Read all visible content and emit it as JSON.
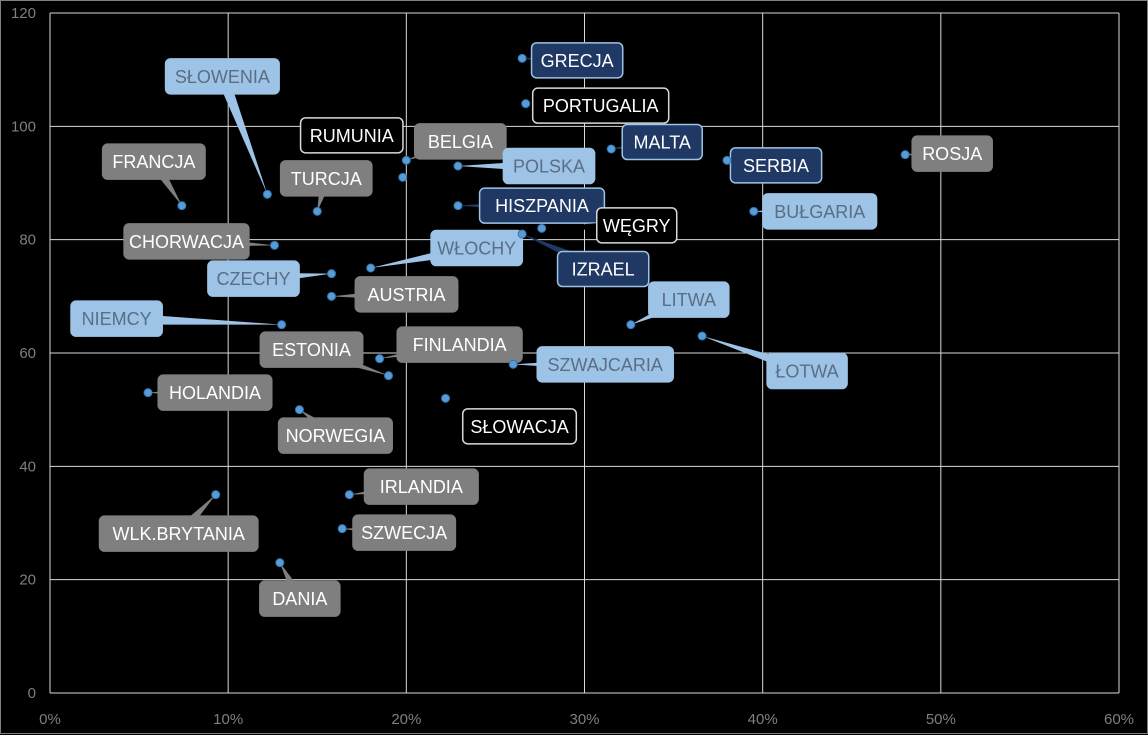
{
  "chart_data": {
    "type": "scatter",
    "title": "",
    "xlabel": "",
    "ylabel": "",
    "xlim": [
      0,
      0.6
    ],
    "ylim": [
      0,
      120
    ],
    "x_ticks": [
      "0%",
      "10%",
      "20%",
      "30%",
      "40%",
      "50%",
      "60%"
    ],
    "y_ticks": [
      "0",
      "20",
      "40",
      "60",
      "80",
      "100",
      "120"
    ],
    "grid": true,
    "legend": "none",
    "label_styles": {
      "gray": {
        "fill": "#7f7f7f",
        "stroke": "#7f7f7f",
        "text": "#ffffff"
      },
      "lightblue": {
        "fill": "#9dc3e6",
        "stroke": "#9dc3e6",
        "text": "#5a6e85"
      },
      "navy": {
        "fill": "#1f3864",
        "stroke": "#9dc3e6",
        "text": "#ffffff"
      },
      "black": {
        "fill": "#000000",
        "stroke": "#d9d9d9",
        "text": "#ffffff"
      }
    },
    "point_color": "#5b9bd5",
    "points": [
      {
        "name": "GRECJA",
        "x": 0.265,
        "y": 112,
        "style": "navy"
      },
      {
        "name": "PORTUGALIA",
        "x": 0.267,
        "y": 104,
        "style": "black"
      },
      {
        "name": "MALTA",
        "x": 0.315,
        "y": 96,
        "style": "navy"
      },
      {
        "name": "SERBIA",
        "x": 0.38,
        "y": 94,
        "style": "navy"
      },
      {
        "name": "ROSJA",
        "x": 0.48,
        "y": 95,
        "style": "gray"
      },
      {
        "name": "SŁOWENIA",
        "x": 0.122,
        "y": 88,
        "style": "lightblue"
      },
      {
        "name": "FRANCJA",
        "x": 0.074,
        "y": 86,
        "style": "gray"
      },
      {
        "name": "TURCJA",
        "x": 0.15,
        "y": 85,
        "style": "gray"
      },
      {
        "name": "RUMUNIA",
        "x": 0.198,
        "y": 91,
        "style": "black"
      },
      {
        "name": "BELGIA",
        "x": 0.2,
        "y": 94,
        "style": "gray"
      },
      {
        "name": "POLSKA",
        "x": 0.229,
        "y": 93,
        "style": "lightblue"
      },
      {
        "name": "HISZPANIA",
        "x": 0.229,
        "y": 86,
        "style": "navy"
      },
      {
        "name": "WĘGRY",
        "x": 0.276,
        "y": 82,
        "style": "black"
      },
      {
        "name": "IZRAEL",
        "x": 0.265,
        "y": 81,
        "style": "navy"
      },
      {
        "name": "BUŁGARIA",
        "x": 0.395,
        "y": 85,
        "style": "lightblue"
      },
      {
        "name": "CHORWACJA",
        "x": 0.126,
        "y": 79,
        "style": "gray"
      },
      {
        "name": "WŁOCHY",
        "x": 0.18,
        "y": 75,
        "style": "lightblue"
      },
      {
        "name": "CZECHY",
        "x": 0.158,
        "y": 74,
        "style": "lightblue"
      },
      {
        "name": "AUSTRIA",
        "x": 0.158,
        "y": 70,
        "style": "gray"
      },
      {
        "name": "LITWA",
        "x": 0.326,
        "y": 65,
        "style": "lightblue"
      },
      {
        "name": "NIEMCY",
        "x": 0.13,
        "y": 65,
        "style": "lightblue"
      },
      {
        "name": "ŁOTWA",
        "x": 0.366,
        "y": 63,
        "style": "lightblue"
      },
      {
        "name": "ESTONIA",
        "x": 0.19,
        "y": 56,
        "style": "gray"
      },
      {
        "name": "FINLANDIA",
        "x": 0.185,
        "y": 59,
        "style": "gray"
      },
      {
        "name": "SZWAJCARIA",
        "x": 0.26,
        "y": 58,
        "style": "lightblue"
      },
      {
        "name": "HOLANDIA",
        "x": 0.055,
        "y": 53,
        "style": "gray"
      },
      {
        "name": "SŁOWACJA",
        "x": 0.222,
        "y": 52,
        "style": "black"
      },
      {
        "name": "NORWEGIA",
        "x": 0.14,
        "y": 50,
        "style": "gray"
      },
      {
        "name": "IRLANDIA",
        "x": 0.168,
        "y": 35,
        "style": "gray"
      },
      {
        "name": "WLK.BRYTANIA",
        "x": 0.093,
        "y": 35,
        "style": "gray"
      },
      {
        "name": "SZWECJA",
        "x": 0.164,
        "y": 29,
        "style": "gray"
      },
      {
        "name": "DANIA",
        "x": 0.129,
        "y": 23,
        "style": "gray"
      }
    ]
  }
}
